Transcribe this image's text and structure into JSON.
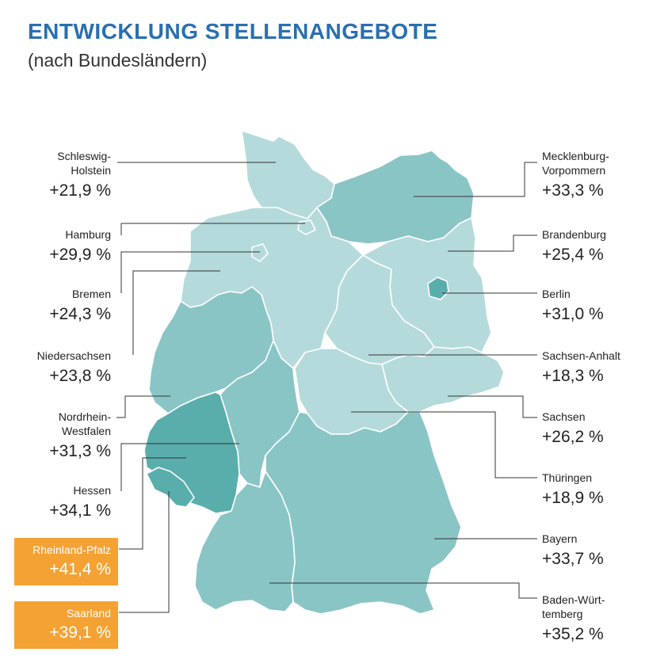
{
  "title": "ENTWICKLUNG STELLENANGEBOTE",
  "subtitle": "(nach Bundesländern)",
  "colors": {
    "title": "#2a6fb0",
    "highlight": "#f4a234",
    "region_light": "#b5dadb",
    "region_mid": "#8ac5c6",
    "region_dark": "#59aeac",
    "leader_line": "#333333"
  },
  "states_left": [
    {
      "name": "Schleswig-\nHolstein",
      "value": "+21,9 %"
    },
    {
      "name": "Hamburg",
      "value": "+29,9 %"
    },
    {
      "name": "Bremen",
      "value": "+24,3 %"
    },
    {
      "name": "Niedersachsen",
      "value": "+23,8 %"
    },
    {
      "name": "Nordrhein-\nWestfalen",
      "value": "+31,3 %"
    },
    {
      "name": "Hessen",
      "value": "+34,1 %"
    },
    {
      "name": "Rheinland-Pfalz",
      "value": "+41,4 %"
    },
    {
      "name": "Saarland",
      "value": "+39,1 %"
    }
  ],
  "states_right": [
    {
      "name": "Mecklenburg-\nVorpommern",
      "value": "+33,3 %"
    },
    {
      "name": "Brandenburg",
      "value": "+25,4 %"
    },
    {
      "name": "Berlin",
      "value": "+31,0 %"
    },
    {
      "name": "Sachsen-Anhalt",
      "value": "+18,3 %"
    },
    {
      "name": "Sachsen",
      "value": "+26,2 %"
    },
    {
      "name": "Thüringen",
      "value": "+18,9 %"
    },
    {
      "name": "Bayern",
      "value": "+33,7 %"
    },
    {
      "name": "Baden-Würt-\ntemberg",
      "value": "+35,2 %"
    }
  ]
}
